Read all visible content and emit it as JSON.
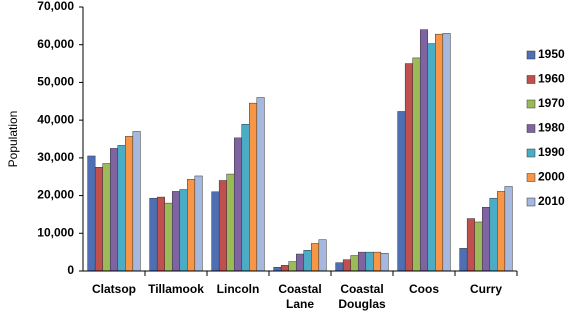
{
  "chart_data": {
    "type": "bar",
    "y_label": "Population",
    "categories": [
      "Clatsop",
      "Tillamook",
      "Lincoln",
      "Coastal Lane",
      "Coastal Douglas",
      "Coos",
      "Curry"
    ],
    "series": [
      {
        "name": "1950",
        "color": "#4f6fb5",
        "values": [
          30500,
          19300,
          21000,
          1000,
          2200,
          42300,
          6000
        ]
      },
      {
        "name": "1960",
        "color": "#c0504d",
        "values": [
          27500,
          19600,
          24000,
          1500,
          3000,
          55000,
          13900
        ]
      },
      {
        "name": "1970",
        "color": "#9bbb59",
        "values": [
          28500,
          18000,
          25700,
          2500,
          4100,
          56500,
          13000
        ]
      },
      {
        "name": "1980",
        "color": "#8064a2",
        "values": [
          32500,
          21100,
          35300,
          4500,
          5000,
          64000,
          16900
        ]
      },
      {
        "name": "1990",
        "color": "#4bacc6",
        "values": [
          33300,
          21600,
          38900,
          5500,
          5000,
          60300,
          19300
        ]
      },
      {
        "name": "2000",
        "color": "#f79646",
        "values": [
          35700,
          24300,
          44500,
          7300,
          5000,
          62800,
          21100
        ]
      },
      {
        "name": "2010",
        "color": "#a5b8e0",
        "values": [
          37000,
          25200,
          46000,
          8300,
          4700,
          63000,
          22400
        ]
      }
    ],
    "ylim": [
      0,
      70000
    ],
    "yticks": [
      0,
      {
        "value": 10000,
        "label": "10,000"
      },
      {
        "value": 20000,
        "label": "20,000"
      },
      {
        "value": 30000,
        "label": "30,000"
      },
      {
        "value": 40000,
        "label": "40,000"
      },
      {
        "value": 50000,
        "label": "50,000"
      },
      {
        "value": 60000,
        "label": "60,000"
      },
      {
        "value": 70000,
        "label": "70,000"
      }
    ],
    "legend": "right",
    "grid": false
  }
}
